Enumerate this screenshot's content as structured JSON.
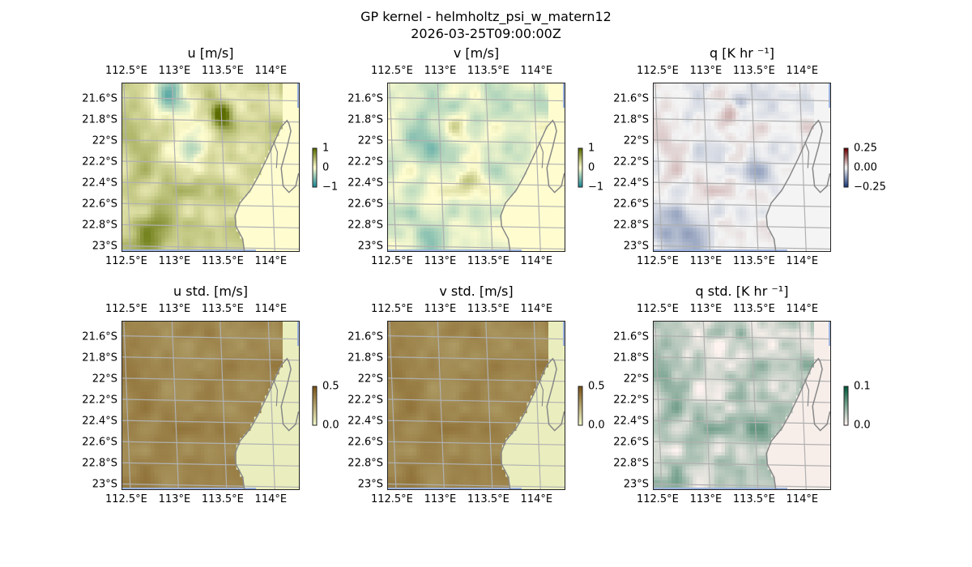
{
  "header": {
    "title": "GP kernel - helmholtz_psi_w_matern12",
    "subtitle": "2026-03-25T09:00:00Z"
  },
  "axes": {
    "lon_ticks": [
      "112.5°E",
      "113°E",
      "113.5°E",
      "114°E"
    ],
    "lat_ticks": [
      "21.6°S",
      "21.8°S",
      "22°S",
      "22.2°S",
      "22.4°S",
      "22.6°S",
      "22.8°S",
      "23°S"
    ]
  },
  "chart_data": [
    {
      "type": "heatmap",
      "title": "u [m/s]",
      "field": "u",
      "colorbar_ticks": [
        "1",
        "0",
        "−1"
      ],
      "clim": [
        -1.2,
        1.2
      ],
      "colors": {
        "low": "#1f8a96",
        "mid": "#fffdd0",
        "high": "#5c6d00"
      }
    },
    {
      "type": "heatmap",
      "title": "v [m/s]",
      "field": "v",
      "colorbar_ticks": [
        "1",
        "0",
        "−1"
      ],
      "clim": [
        -1.2,
        1.2
      ],
      "colors": {
        "low": "#1f8a96",
        "mid": "#fffdd0",
        "high": "#5c6d00"
      }
    },
    {
      "type": "heatmap",
      "title": "q [K hr ⁻¹]",
      "field": "q",
      "colorbar_ticks": [
        "0.25",
        "0.00",
        "−0.25"
      ],
      "clim": [
        -0.35,
        0.35
      ],
      "colors": {
        "low": "#1b3a7a",
        "mid": "#f4f4f4",
        "high": "#6b0000"
      }
    },
    {
      "type": "heatmap",
      "title": "u std. [m/s]",
      "field": "u_std",
      "colorbar_ticks": [
        "0.5",
        "0.0"
      ],
      "clim": [
        0,
        0.55
      ],
      "colors": {
        "low": "#f0f7c8",
        "high": "#7a5418"
      }
    },
    {
      "type": "heatmap",
      "title": "v std. [m/s]",
      "field": "v_std",
      "colorbar_ticks": [
        "0.5",
        "0.0"
      ],
      "clim": [
        0,
        0.55
      ],
      "colors": {
        "low": "#f0f7c8",
        "high": "#7a5418"
      }
    },
    {
      "type": "heatmap",
      "title": "q std. [K hr ⁻¹]",
      "field": "q_std",
      "colorbar_ticks": [
        "0.1",
        "0.0"
      ],
      "clim": [
        0,
        0.12
      ],
      "colors": {
        "low": "#fff3f0",
        "high": "#005a3a"
      }
    }
  ],
  "colors": {
    "ocean_edge": "#9bb2e0",
    "coast": "#888888",
    "grid": "#b0b0b0"
  }
}
